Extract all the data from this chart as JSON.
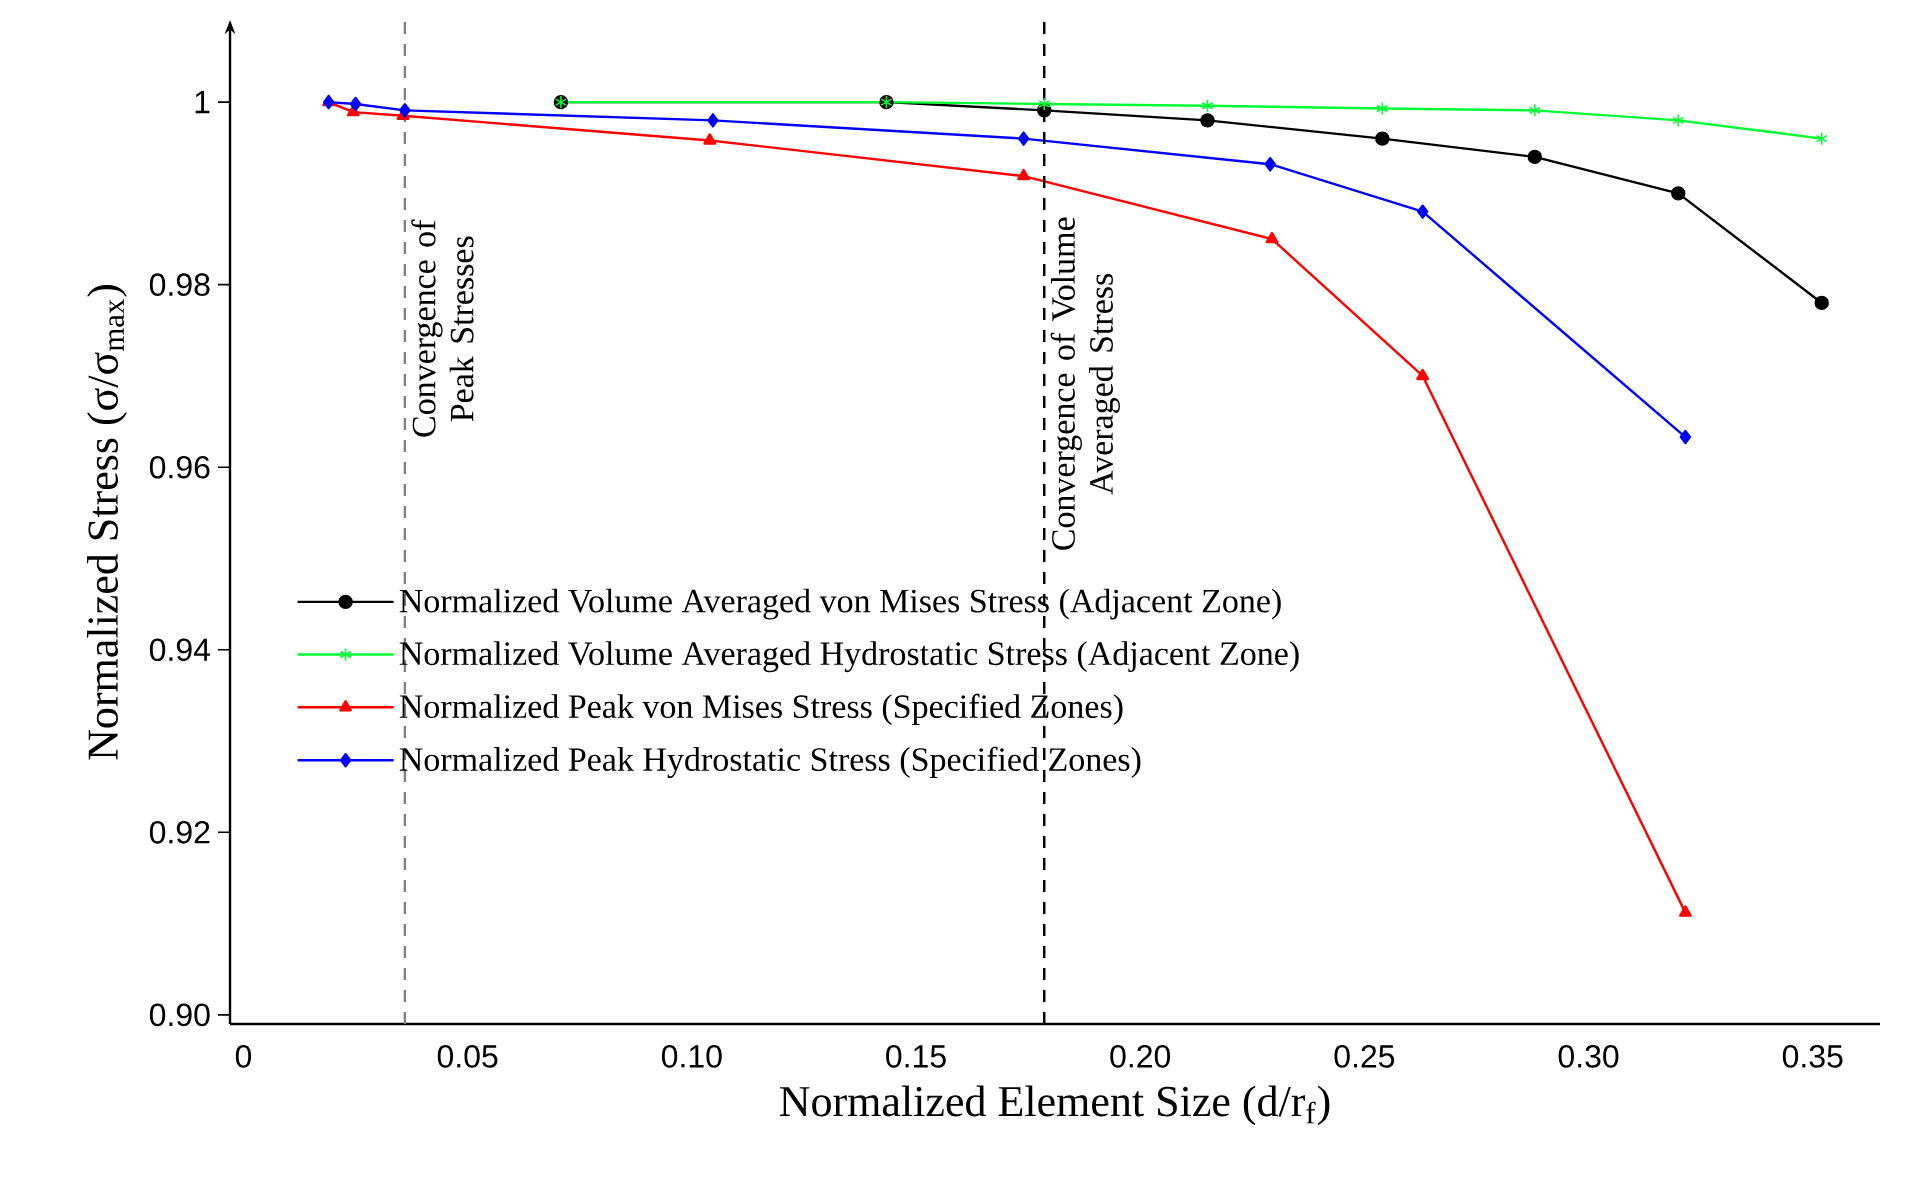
{
  "chart_data": {
    "type": "line",
    "xlabel": "Normalized Element Size  (d/r$_{f}$)",
    "ylabel": "Normalized Stress  (σ/σ$_{max}$)",
    "xlim": [
      -0.003,
      0.365
    ],
    "ylim": [
      0.899,
      1.009
    ],
    "xticks": [
      0,
      {
        "value": 0.05,
        "label": "0.05"
      },
      {
        "value": 0.1,
        "label": "0.10"
      },
      {
        "value": 0.15,
        "label": "0.15"
      },
      {
        "value": 0.2,
        "label": "0.20"
      },
      {
        "value": 0.25,
        "label": "0.25"
      },
      {
        "value": 0.3,
        "label": "0.30"
      },
      {
        "value": 0.35,
        "label": "0.35"
      }
    ],
    "yticks": [
      {
        "value": 0.9,
        "label": "0.90"
      },
      0.92,
      0.94,
      0.96,
      0.98,
      1
    ],
    "grid": false,
    "legend": "left",
    "ref_lines": [
      {
        "axis": "x",
        "value": 0.036,
        "label": "Convergence of Peak Stresses",
        "color": "#808080",
        "line_style": "dashed"
      },
      {
        "axis": "x",
        "value": 0.1786,
        "label": "Convergence of Volume Averaged Stress",
        "color": "#000000",
        "line_style": "dashed"
      }
    ],
    "series": [
      {
        "name": "Normalized Volume Averaged von Mises Stress (Adjacent Zone)",
        "color": "#000000",
        "marker": "circle",
        "x": [
          0.0708,
          0.1434,
          0.1786,
          0.215,
          0.254,
          0.288,
          0.32,
          0.352
        ],
        "values": [
          1.0,
          1.0,
          0.9991,
          0.998,
          0.996,
          0.994,
          0.99,
          0.978
        ]
      },
      {
        "name": "Normalized Volume Averaged Hydrostatic Stress (Adjacent Zone)",
        "color": "#00ff33",
        "marker": "cross",
        "x": [
          0.0708,
          0.1434,
          0.1786,
          0.215,
          0.254,
          0.288,
          0.32,
          0.352
        ],
        "values": [
          1.0,
          1.0,
          0.9998,
          0.9996,
          0.9993,
          0.9991,
          0.998,
          0.996
        ]
      },
      {
        "name": "Normalized Peak von Mises Stress (Specified Zones)",
        "color": "#ff0000",
        "marker": "triangle",
        "x": [
          0.019,
          0.0245,
          0.0356,
          0.104,
          0.174,
          0.2294,
          0.263,
          0.3216
        ],
        "values": [
          1.0,
          0.9989,
          0.9985,
          0.9958,
          0.9919,
          0.985,
          0.97,
          0.9112
        ]
      },
      {
        "name": "Normalized Peak Hydrostatic Stress (Specified Zones)",
        "color": "#0000ff",
        "marker": "diamond",
        "x": [
          0.019,
          0.025,
          0.036,
          0.1047,
          0.174,
          0.229,
          0.263,
          0.3216
        ],
        "values": [
          1.0,
          0.9998,
          0.9991,
          0.998,
          0.996,
          0.9932,
          0.988,
          0.9633
        ]
      }
    ]
  }
}
